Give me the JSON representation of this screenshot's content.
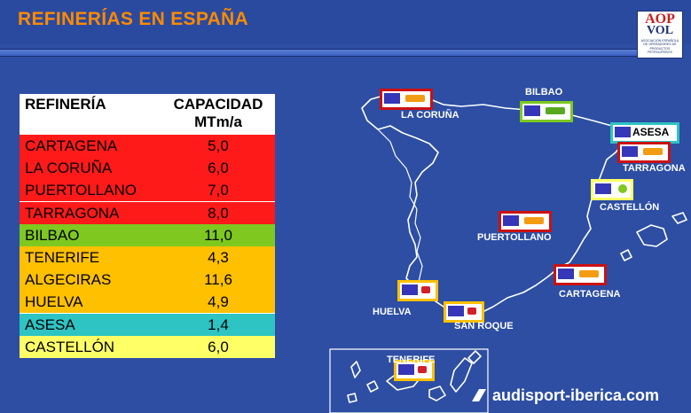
{
  "header": {
    "title": "REFINERÍAS EN ESPAÑA"
  },
  "logo": {
    "line1": "AOP",
    "line2": "VOL",
    "line3": "ASOCIACIÓN ESPAÑOLA DE OPERADORES DE PRODUCTOS PETROLÍFEROS"
  },
  "table": {
    "col1": "REFINERÍA",
    "col2_line1": "CAPACIDAD",
    "col2_line2": "MTm/a",
    "rows": [
      {
        "name": "CARTAGENA",
        "value": "5,0",
        "color": "#ff1a1a"
      },
      {
        "name": "LA CORUÑA",
        "value": "6,0",
        "color": "#ff1a1a"
      },
      {
        "name": "PUERTOLLANO",
        "value": "7,0",
        "color": "#ff1a1a"
      },
      {
        "name": "TARRAGONA",
        "value": "8,0",
        "color": "#ff1a1a"
      },
      {
        "name": "BILBAO",
        "value": "11,0",
        "color": "#7ec820"
      },
      {
        "name": "TENERIFE",
        "value": "4,3",
        "color": "#ffc000"
      },
      {
        "name": "ALGECIRAS",
        "value": "11,6",
        "color": "#ffc000"
      },
      {
        "name": "HUELVA",
        "value": "4,9",
        "color": "#ffc000"
      },
      {
        "name": "ASESA",
        "value": "1,4",
        "color": "#2ec4c4"
      },
      {
        "name": "CASTELLÓN",
        "value": "6,0",
        "color": "#ffff66"
      }
    ]
  },
  "map": {
    "labels": {
      "coruna": "LA CORUÑA",
      "bilbao": "BILBAO",
      "asesa": "ASESA",
      "tarragona": "TARRAGONA",
      "castellon": "CASTELLÓN",
      "puertollano": "PUERTOLLANO",
      "cartagena": "CARTAGENA",
      "huelva": "HUELVA",
      "sanroque": "SAN ROQUE",
      "tenerife": "TENERIFE"
    }
  },
  "footer": {
    "text": "audisport-iberica.com"
  }
}
